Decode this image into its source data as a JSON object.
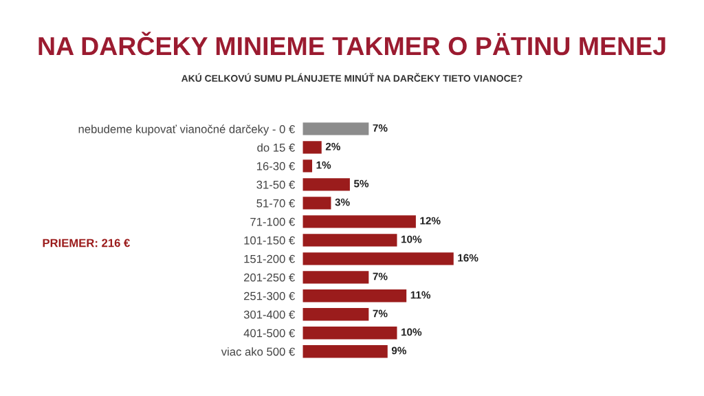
{
  "chart_data": {
    "type": "bar",
    "orientation": "horizontal",
    "title": "NA DARČEKY MINIEME TAKMER O PÄTINU MENEJ",
    "subtitle": "AKÚ CELKOVÚ SUMU PLÁNUJETE MINÚŤ NA DARČEKY TIETO VIANOCE?",
    "categories": [
      "nebudeme kupovať vianočné darčeky - 0 €",
      "do 15 €",
      "16-30 €",
      "31-50 €",
      "51-70 €",
      "71-100 €",
      "101-150 €",
      "151-200 €",
      "201-250 €",
      "251-300 €",
      "301-400 €",
      "401-500 €",
      "viac ako 500 €"
    ],
    "values": [
      7,
      2,
      1,
      5,
      3,
      12,
      10,
      16,
      7,
      11,
      7,
      10,
      9
    ],
    "value_labels": [
      "7%",
      "2%",
      "1%",
      "5%",
      "3%",
      "12%",
      "10%",
      "16%",
      "7%",
      "11%",
      "7%",
      "10%",
      "9%"
    ],
    "colors": [
      "#8c8c8c",
      "#9b1c1c",
      "#9b1c1c",
      "#9b1c1c",
      "#9b1c1c",
      "#9b1c1c",
      "#9b1c1c",
      "#9b1c1c",
      "#9b1c1c",
      "#9b1c1c",
      "#9b1c1c",
      "#9b1c1c",
      "#9b1c1c"
    ],
    "annotations": [
      "PRIEMER: 216 €"
    ],
    "grid": false,
    "legend": false
  }
}
